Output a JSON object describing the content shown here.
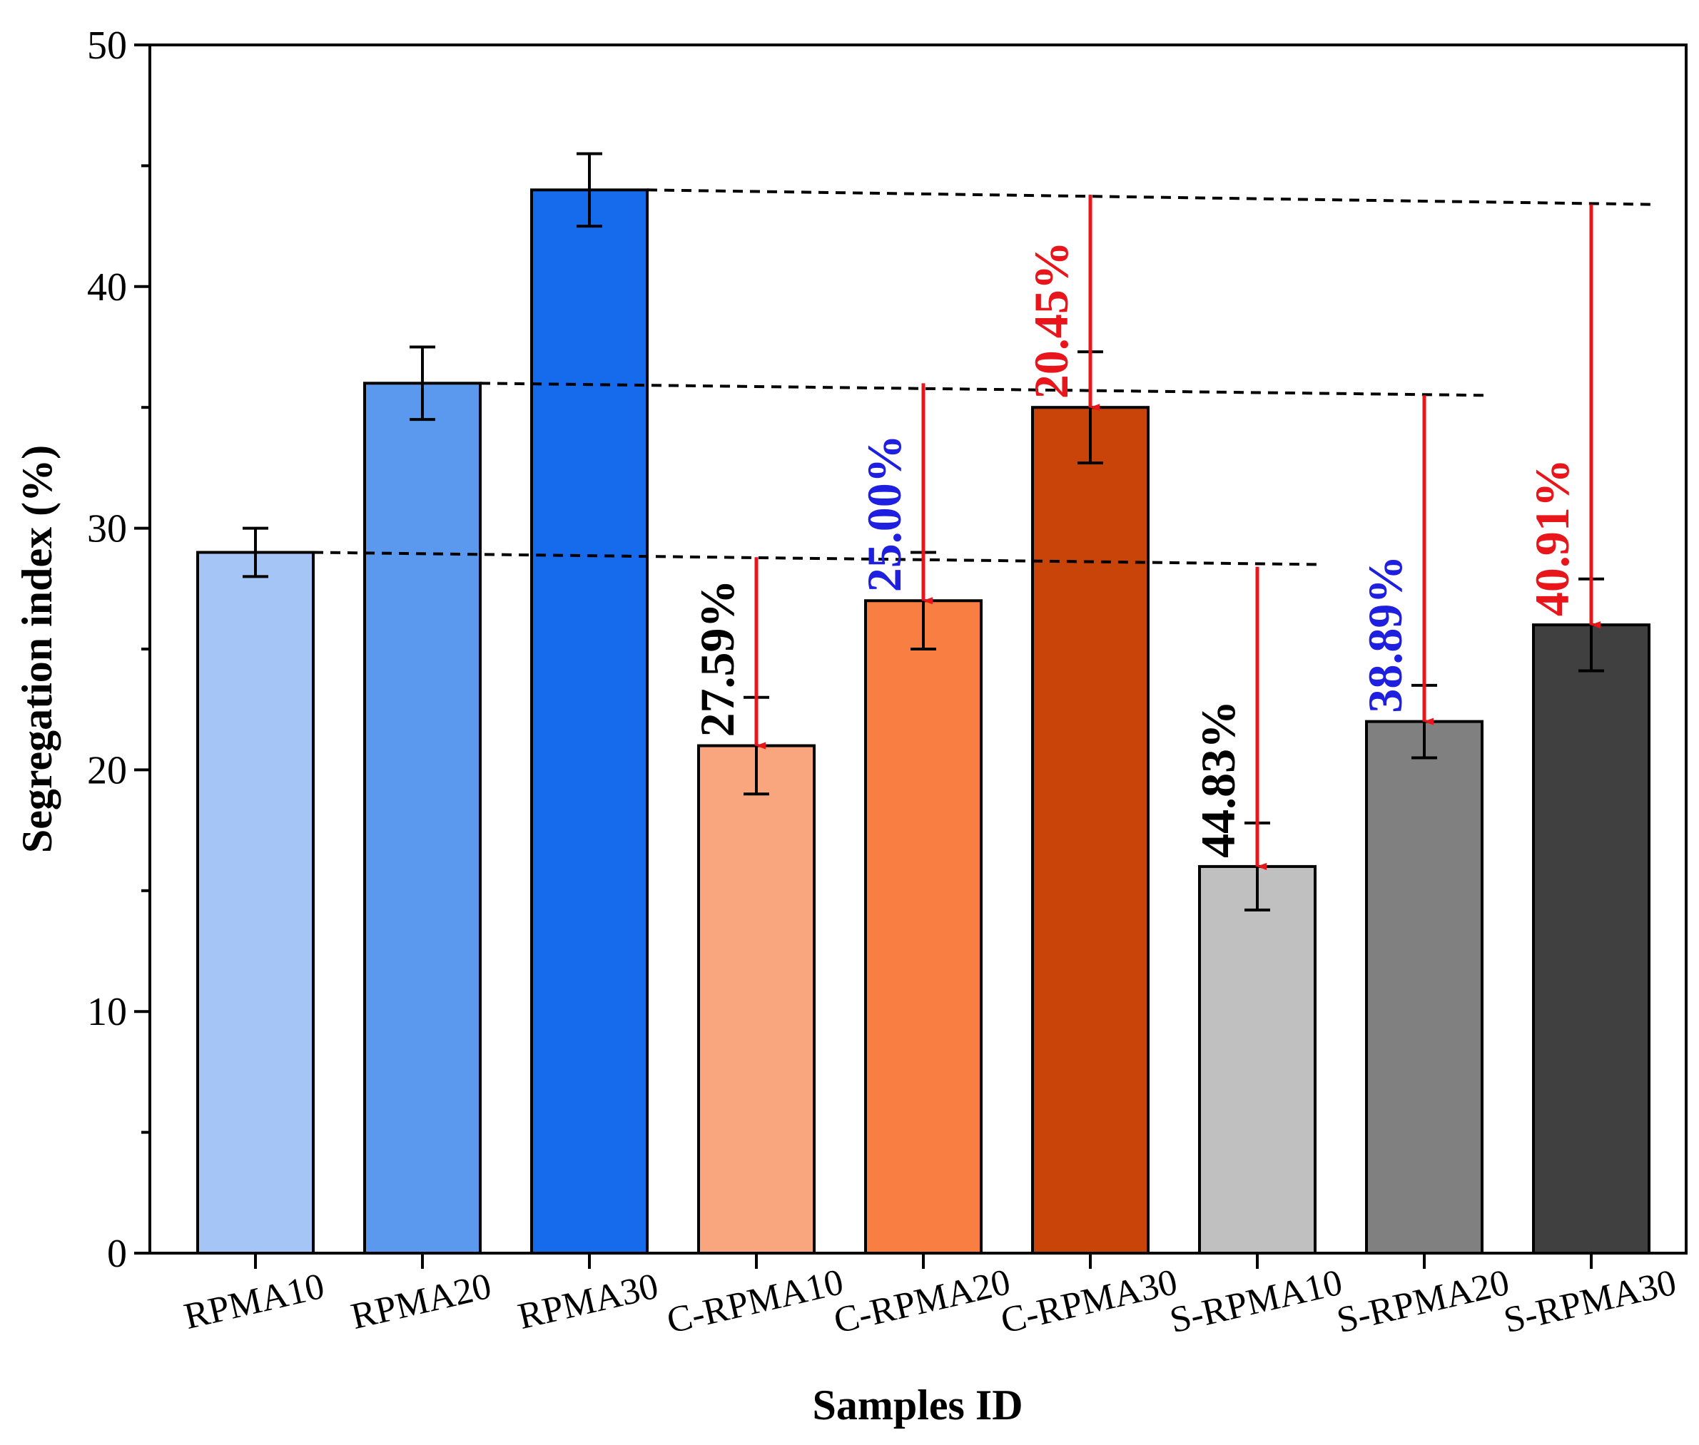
{
  "chart_data": {
    "type": "bar",
    "xlabel": "Samples ID",
    "ylabel": "Segregation index (%)",
    "ylim": [
      0,
      50
    ],
    "yticks": [
      0,
      10,
      20,
      30,
      40,
      50
    ],
    "categories": [
      "RPMA10",
      "RPMA20",
      "RPMA30",
      "C-RPMA10",
      "C-RPMA20",
      "C-RPMA30",
      "S-RPMA10",
      "S-RPMA20",
      "S-RPMA30"
    ],
    "values": [
      29,
      36,
      44,
      21,
      27,
      35,
      16,
      22,
      26
    ],
    "errors": [
      [
        28,
        30
      ],
      [
        34.5,
        37.5
      ],
      [
        42.5,
        45.5
      ],
      [
        19,
        23
      ],
      [
        25,
        29
      ],
      [
        32.7,
        37.3
      ],
      [
        14.2,
        17.8
      ],
      [
        20.5,
        23.5
      ],
      [
        24.1,
        27.9
      ]
    ],
    "bar_colors": [
      "#a6c5f7",
      "#5b99ef",
      "#166aec",
      "#f9a57e",
      "#f87e42",
      "#c94408",
      "#c0c0c0",
      "#808080",
      "#404040"
    ],
    "reference_lines": [
      {
        "from_category": 0,
        "to_category": 6,
        "value_start": 29,
        "value_end": 28.5
      },
      {
        "from_category": 1,
        "to_category": 7,
        "value_start": 36,
        "value_end": 35.5
      },
      {
        "from_category": 2,
        "to_category": 8,
        "value_start": 44,
        "value_end": 43.4
      }
    ],
    "annotations": [
      {
        "category": 3,
        "text": "27.59%",
        "color": "#000000",
        "arrow_from": 28.8,
        "arrow_to": 21
      },
      {
        "category": 4,
        "text": "25.00%",
        "color": "#1f1fe0",
        "arrow_from": 36,
        "arrow_to": 27
      },
      {
        "category": 5,
        "text": "20.45%",
        "color": "#e8151b",
        "arrow_from": 43.8,
        "arrow_to": 35
      },
      {
        "category": 6,
        "text": "44.83%",
        "color": "#000000",
        "arrow_from": 28.4,
        "arrow_to": 16
      },
      {
        "category": 7,
        "text": "38.89%",
        "color": "#1f1fe0",
        "arrow_from": 35.5,
        "arrow_to": 22
      },
      {
        "category": 8,
        "text": "40.91%",
        "color": "#e8151b",
        "arrow_from": 43.4,
        "arrow_to": 26
      }
    ],
    "arrow_color": "#e8151b"
  }
}
